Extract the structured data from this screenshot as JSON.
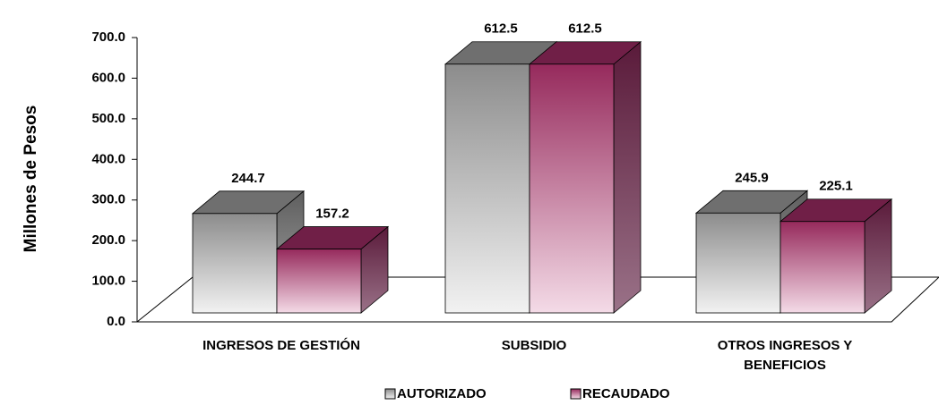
{
  "chart_data": {
    "type": "bar3d",
    "y_axis_label": "Millones de Pesos",
    "categories": [
      "INGRESOS DE GESTIÓN",
      "SUBSIDIO",
      "OTROS INGRESOS Y BENEFICIOS"
    ],
    "series": [
      {
        "name": "AUTORIZADO",
        "color": "#9a9a9a",
        "values": [
          244.7,
          612.5,
          245.9
        ]
      },
      {
        "name": "RECAUDADO",
        "color": "#9b2a5e",
        "values": [
          157.2,
          612.5,
          225.1
        ]
      }
    ],
    "ylim": [
      0,
      700
    ],
    "yticks": [
      {
        "value": 0,
        "label": "0.0"
      },
      {
        "value": 100,
        "label": "100.0"
      },
      {
        "value": 200,
        "label": "200.0"
      },
      {
        "value": 300,
        "label": "300.0"
      },
      {
        "value": 400,
        "label": "400.0"
      },
      {
        "value": 500,
        "label": "500.0"
      },
      {
        "value": 600,
        "label": "600.0"
      },
      {
        "value": 700,
        "label": "700.0"
      }
    ],
    "legend": "bottom"
  }
}
